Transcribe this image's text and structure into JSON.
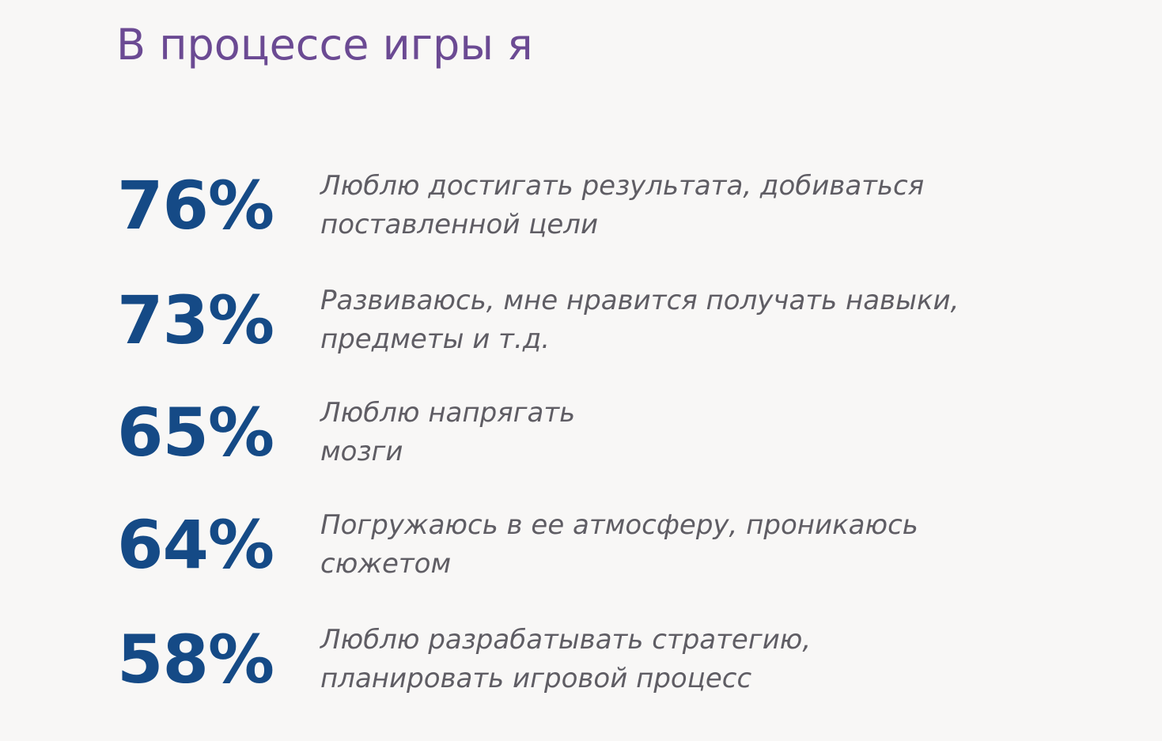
{
  "title": "В процессе игры я",
  "colors": {
    "title": "#6b4a93",
    "value": "#154a86",
    "text": "#5f5d64",
    "background": "#f8f7f6"
  },
  "stats": [
    {
      "value": "76%",
      "lines": [
        "Люблю достигать результата, добиваться",
        "поставленной цели"
      ]
    },
    {
      "value": "73%",
      "lines": [
        "Развиваюсь, мне нравится получать навыки,",
        "предметы и т.д."
      ]
    },
    {
      "value": "65%",
      "lines": [
        "Люблю напрягать",
        "мозги"
      ]
    },
    {
      "value": "64%",
      "lines": [
        "Погружаюсь в ее атмосферу, проникаюсь",
        "сюжетом"
      ]
    },
    {
      "value": "58%",
      "lines": [
        "Люблю разрабатывать стратегию,",
        "планировать игровой процесс"
      ]
    }
  ]
}
